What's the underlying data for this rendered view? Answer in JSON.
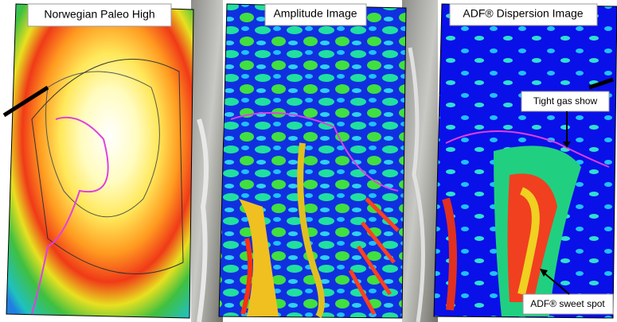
{
  "panels": [
    {
      "title": "Norwegian Paleo High"
    },
    {
      "title": "Amplitude Image"
    },
    {
      "title": "ADF® Dispersion Image"
    }
  ],
  "annotations": [
    "Tight gas show",
    "ADF® sweet spot"
  ]
}
